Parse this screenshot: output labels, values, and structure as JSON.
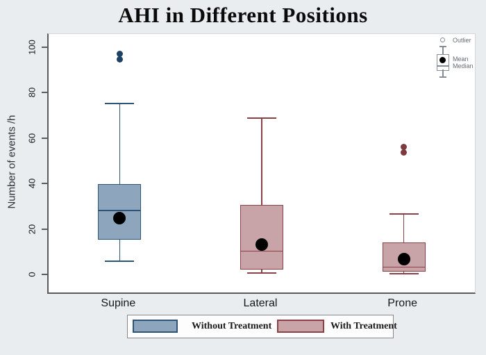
{
  "marker_legend": {
    "outlier": "Outlier",
    "mean": "Mean",
    "median": "Median"
  },
  "treatment_legend": [
    {
      "label": "Without Treatment",
      "style": "without"
    },
    {
      "label": "With Treatment",
      "style": "with"
    }
  ],
  "colors": {
    "background": "#e9edf0",
    "plot_background": "#ffffff",
    "axis": "#585c61",
    "without_fill": "#8ea6bd",
    "without_border": "#2d5377",
    "without_outlier": "#1d4266",
    "with_fill": "#c8a4a8",
    "with_border": "#8c4046",
    "with_outlier": "#7d3a40",
    "mean_dot": "#000000"
  },
  "chart_data": {
    "type": "boxplot",
    "title": "AHI in Different Positions",
    "xlabel": "",
    "ylabel": "Number of events /h",
    "ylim": [
      0,
      100
    ],
    "yticks": [
      0,
      20,
      40,
      60,
      80,
      100
    ],
    "grid": false,
    "legend_position": "bottom",
    "categories": [
      "Supine",
      "Lateral",
      "Prone"
    ],
    "series": [
      {
        "category": "Supine",
        "group": "Without Treatment",
        "style": "without",
        "whisker_low": 6,
        "q1": 15.5,
        "median": 28.5,
        "mean": 25,
        "q3": 40,
        "whisker_high": 75.5,
        "outliers": [
          95,
          97.5
        ]
      },
      {
        "category": "Lateral",
        "group": "With Treatment",
        "style": "with",
        "whisker_low": 1,
        "q1": 2.5,
        "median": 10.5,
        "mean": 13.5,
        "q3": 31,
        "whisker_high": 69,
        "outliers": []
      },
      {
        "category": "Prone",
        "group": "With Treatment",
        "style": "with",
        "whisker_low": 0.5,
        "q1": 1.5,
        "median": 3.5,
        "mean": 7,
        "q3": 14.5,
        "whisker_high": 27,
        "outliers": [
          54,
          56.5
        ]
      }
    ]
  }
}
